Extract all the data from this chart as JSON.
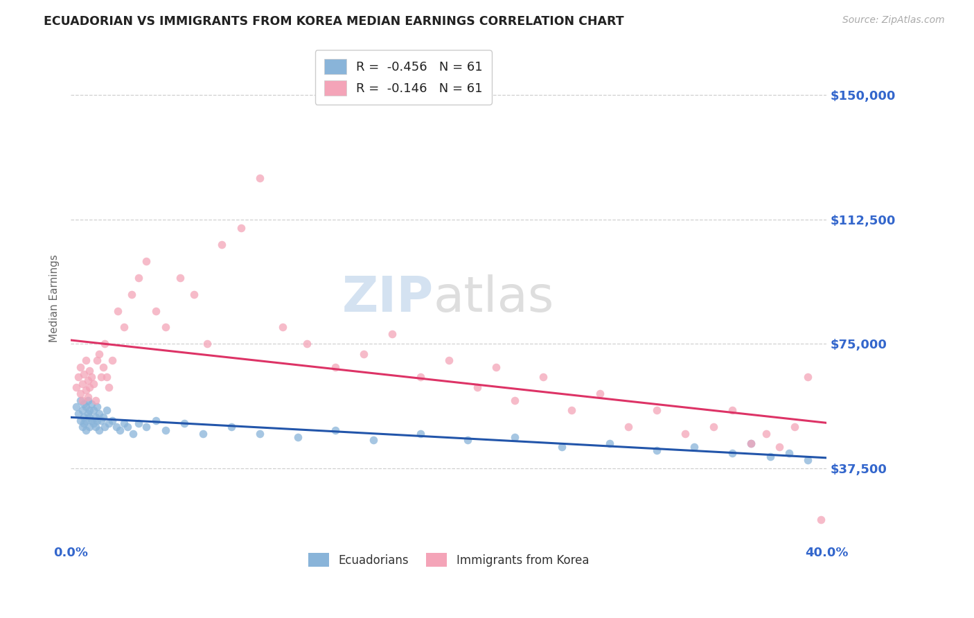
{
  "title": "ECUADORIAN VS IMMIGRANTS FROM KOREA MEDIAN EARNINGS CORRELATION CHART",
  "source": "Source: ZipAtlas.com",
  "ylabel": "Median Earnings",
  "xlim": [
    0.0,
    0.4
  ],
  "ylim": [
    15000,
    162500
  ],
  "yticks": [
    37500,
    75000,
    112500,
    150000
  ],
  "ytick_labels": [
    "$37,500",
    "$75,000",
    "$112,500",
    "$150,000"
  ],
  "xticks": [
    0.0,
    0.05,
    0.1,
    0.15,
    0.2,
    0.25,
    0.3,
    0.35,
    0.4
  ],
  "background_color": "#ffffff",
  "grid_color": "#d0d0d0",
  "blue_color": "#89b4d9",
  "pink_color": "#f4a4b8",
  "blue_line_color": "#2255aa",
  "pink_line_color": "#dd3366",
  "title_color": "#222222",
  "axis_label_color": "#666666",
  "tick_label_color": "#3366cc",
  "label1": "Ecuadorians",
  "label2": "Immigrants from Korea",
  "R1": -0.456,
  "R2": -0.146,
  "N": 61,
  "blue_scatter_x": [
    0.003,
    0.004,
    0.005,
    0.005,
    0.006,
    0.006,
    0.007,
    0.007,
    0.007,
    0.008,
    0.008,
    0.008,
    0.009,
    0.009,
    0.01,
    0.01,
    0.01,
    0.011,
    0.011,
    0.012,
    0.012,
    0.013,
    0.013,
    0.014,
    0.014,
    0.015,
    0.015,
    0.016,
    0.017,
    0.018,
    0.019,
    0.02,
    0.022,
    0.024,
    0.026,
    0.028,
    0.03,
    0.033,
    0.036,
    0.04,
    0.045,
    0.05,
    0.06,
    0.07,
    0.085,
    0.1,
    0.12,
    0.14,
    0.16,
    0.185,
    0.21,
    0.235,
    0.26,
    0.285,
    0.31,
    0.33,
    0.35,
    0.36,
    0.37,
    0.38,
    0.39
  ],
  "blue_scatter_y": [
    56000,
    54000,
    52000,
    58000,
    50000,
    55000,
    53000,
    57000,
    51000,
    52000,
    56000,
    49000,
    54000,
    58000,
    50000,
    53000,
    55000,
    52000,
    57000,
    51000,
    55000,
    53000,
    50000,
    56000,
    52000,
    54000,
    49000,
    52000,
    53000,
    50000,
    55000,
    51000,
    52000,
    50000,
    49000,
    51000,
    50000,
    48000,
    51000,
    50000,
    52000,
    49000,
    51000,
    48000,
    50000,
    48000,
    47000,
    49000,
    46000,
    48000,
    46000,
    47000,
    44000,
    45000,
    43000,
    44000,
    42000,
    45000,
    41000,
    42000,
    40000
  ],
  "pink_scatter_x": [
    0.003,
    0.004,
    0.005,
    0.005,
    0.006,
    0.006,
    0.007,
    0.008,
    0.008,
    0.009,
    0.009,
    0.01,
    0.01,
    0.011,
    0.012,
    0.013,
    0.014,
    0.015,
    0.016,
    0.017,
    0.018,
    0.019,
    0.02,
    0.022,
    0.025,
    0.028,
    0.032,
    0.036,
    0.04,
    0.045,
    0.05,
    0.058,
    0.065,
    0.072,
    0.08,
    0.09,
    0.1,
    0.112,
    0.125,
    0.14,
    0.155,
    0.17,
    0.185,
    0.2,
    0.215,
    0.225,
    0.235,
    0.25,
    0.265,
    0.28,
    0.295,
    0.31,
    0.325,
    0.34,
    0.35,
    0.36,
    0.368,
    0.375,
    0.383,
    0.39,
    0.397
  ],
  "pink_scatter_y": [
    62000,
    65000,
    60000,
    68000,
    63000,
    58000,
    66000,
    61000,
    70000,
    64000,
    59000,
    67000,
    62000,
    65000,
    63000,
    58000,
    70000,
    72000,
    65000,
    68000,
    75000,
    65000,
    62000,
    70000,
    85000,
    80000,
    90000,
    95000,
    100000,
    85000,
    80000,
    95000,
    90000,
    75000,
    105000,
    110000,
    125000,
    80000,
    75000,
    68000,
    72000,
    78000,
    65000,
    70000,
    62000,
    68000,
    58000,
    65000,
    55000,
    60000,
    50000,
    55000,
    48000,
    50000,
    55000,
    45000,
    48000,
    44000,
    50000,
    65000,
    22000
  ]
}
